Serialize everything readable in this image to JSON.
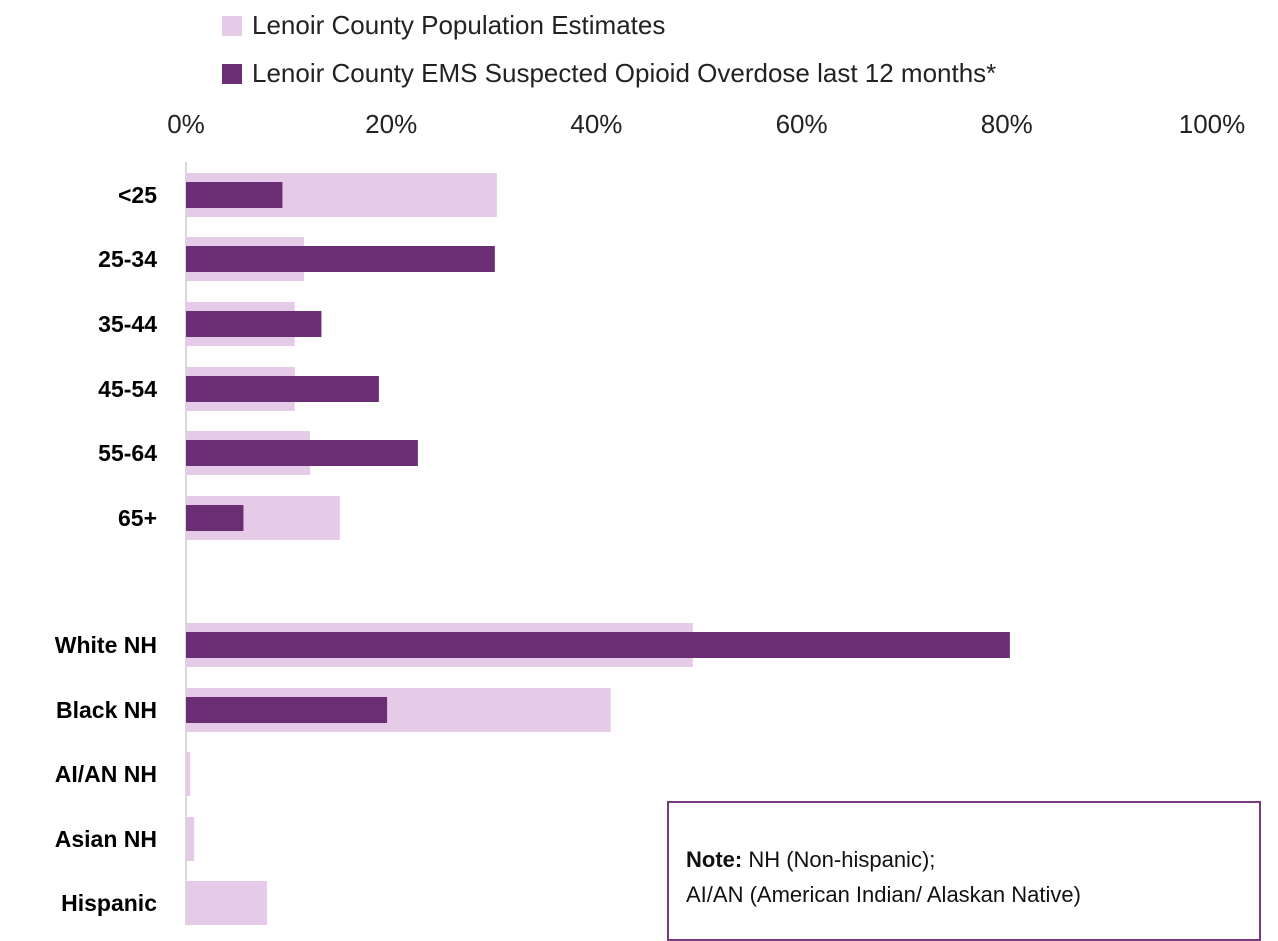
{
  "colors": {
    "population": "#e6cbe8",
    "overdose": "#6b2d73",
    "axis": "#d9d9d9",
    "note_border": "#7a3a82"
  },
  "legend": [
    {
      "label": "Lenoir County Population Estimates",
      "color": "#e6cbe8"
    },
    {
      "label": "Lenoir County EMS Suspected Opioid Overdose last 12 months*",
      "color": "#6b2d73"
    }
  ],
  "note": {
    "bold": "Note:",
    "line1": " NH (Non-hispanic);",
    "line2": "AI/AN (American Indian/ Alaskan Native)"
  },
  "chart_data": {
    "type": "bar",
    "orientation": "horizontal",
    "x_ticks": [
      "0%",
      "20%",
      "40%",
      "60%",
      "80%",
      "100%"
    ],
    "xlim": [
      0,
      100
    ],
    "categories": [
      "<25",
      "25-34",
      "35-44",
      "45-54",
      "55-64",
      "65+",
      "White NH",
      "Black NH",
      "AI/AN NH",
      "Asian NH",
      "Hispanic"
    ],
    "series": [
      {
        "name": "Lenoir County Population Estimates",
        "values": [
          30.3,
          11.5,
          10.6,
          10.6,
          12.1,
          15.0,
          49.4,
          41.4,
          0.4,
          0.8,
          7.9
        ]
      },
      {
        "name": "Lenoir County EMS Suspected Opioid Overdose last 12 months*",
        "values": [
          9.4,
          30.1,
          13.2,
          18.8,
          22.6,
          5.6,
          80.3,
          19.6,
          0,
          0,
          0
        ]
      }
    ],
    "legend_position": "top",
    "grid": false
  }
}
